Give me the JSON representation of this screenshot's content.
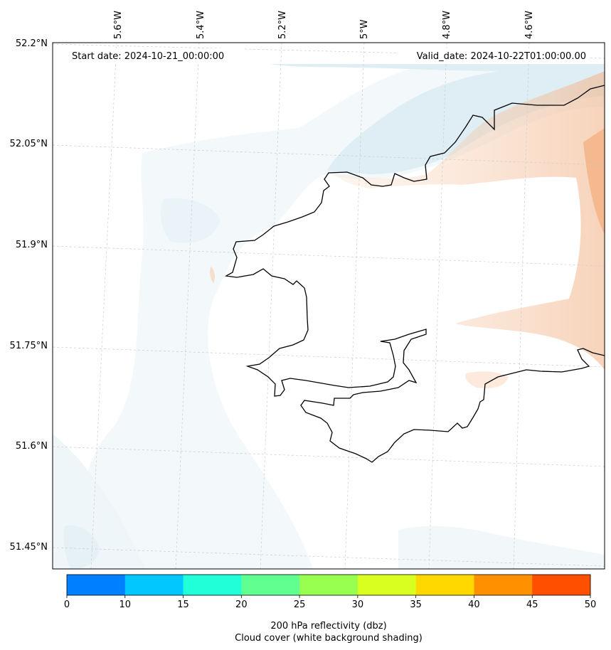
{
  "map": {
    "start_date_text": "Start date: 2024-10-21_00:00:00",
    "valid_date_text": "Valid_date: 2024-10-22T01:00:00.00",
    "lon_labels": [
      "5.6°W",
      "5.4°W",
      "5.2°W",
      "5°W",
      "4.8°W",
      "4.6°W"
    ],
    "lat_labels": [
      "52.2°N",
      "52.05°N",
      "51.9°N",
      "51.75°N",
      "51.6°N",
      "51.45°N"
    ],
    "coastline_color": "#000000",
    "gridline_color": "#cccccc",
    "cloud_shading_color": "#e9f4f8",
    "warm_shading_color": "#f6c9a6"
  },
  "colorbar": {
    "boundaries": [
      0,
      10,
      15,
      20,
      25,
      30,
      35,
      40,
      45,
      50
    ],
    "tick_labels": [
      "0",
      "10",
      "15",
      "20",
      "25",
      "30",
      "35",
      "40",
      "45",
      "50"
    ],
    "colors": [
      "#0080ff",
      "#00c8ff",
      "#20ffd8",
      "#60ff90",
      "#98ff50",
      "#d8ff20",
      "#ffd800",
      "#ff9000",
      "#ff5000"
    ],
    "label_line1": "200 hPa reflectivity (dbz)",
    "label_line2": "Cloud cover (white background shading)"
  }
}
